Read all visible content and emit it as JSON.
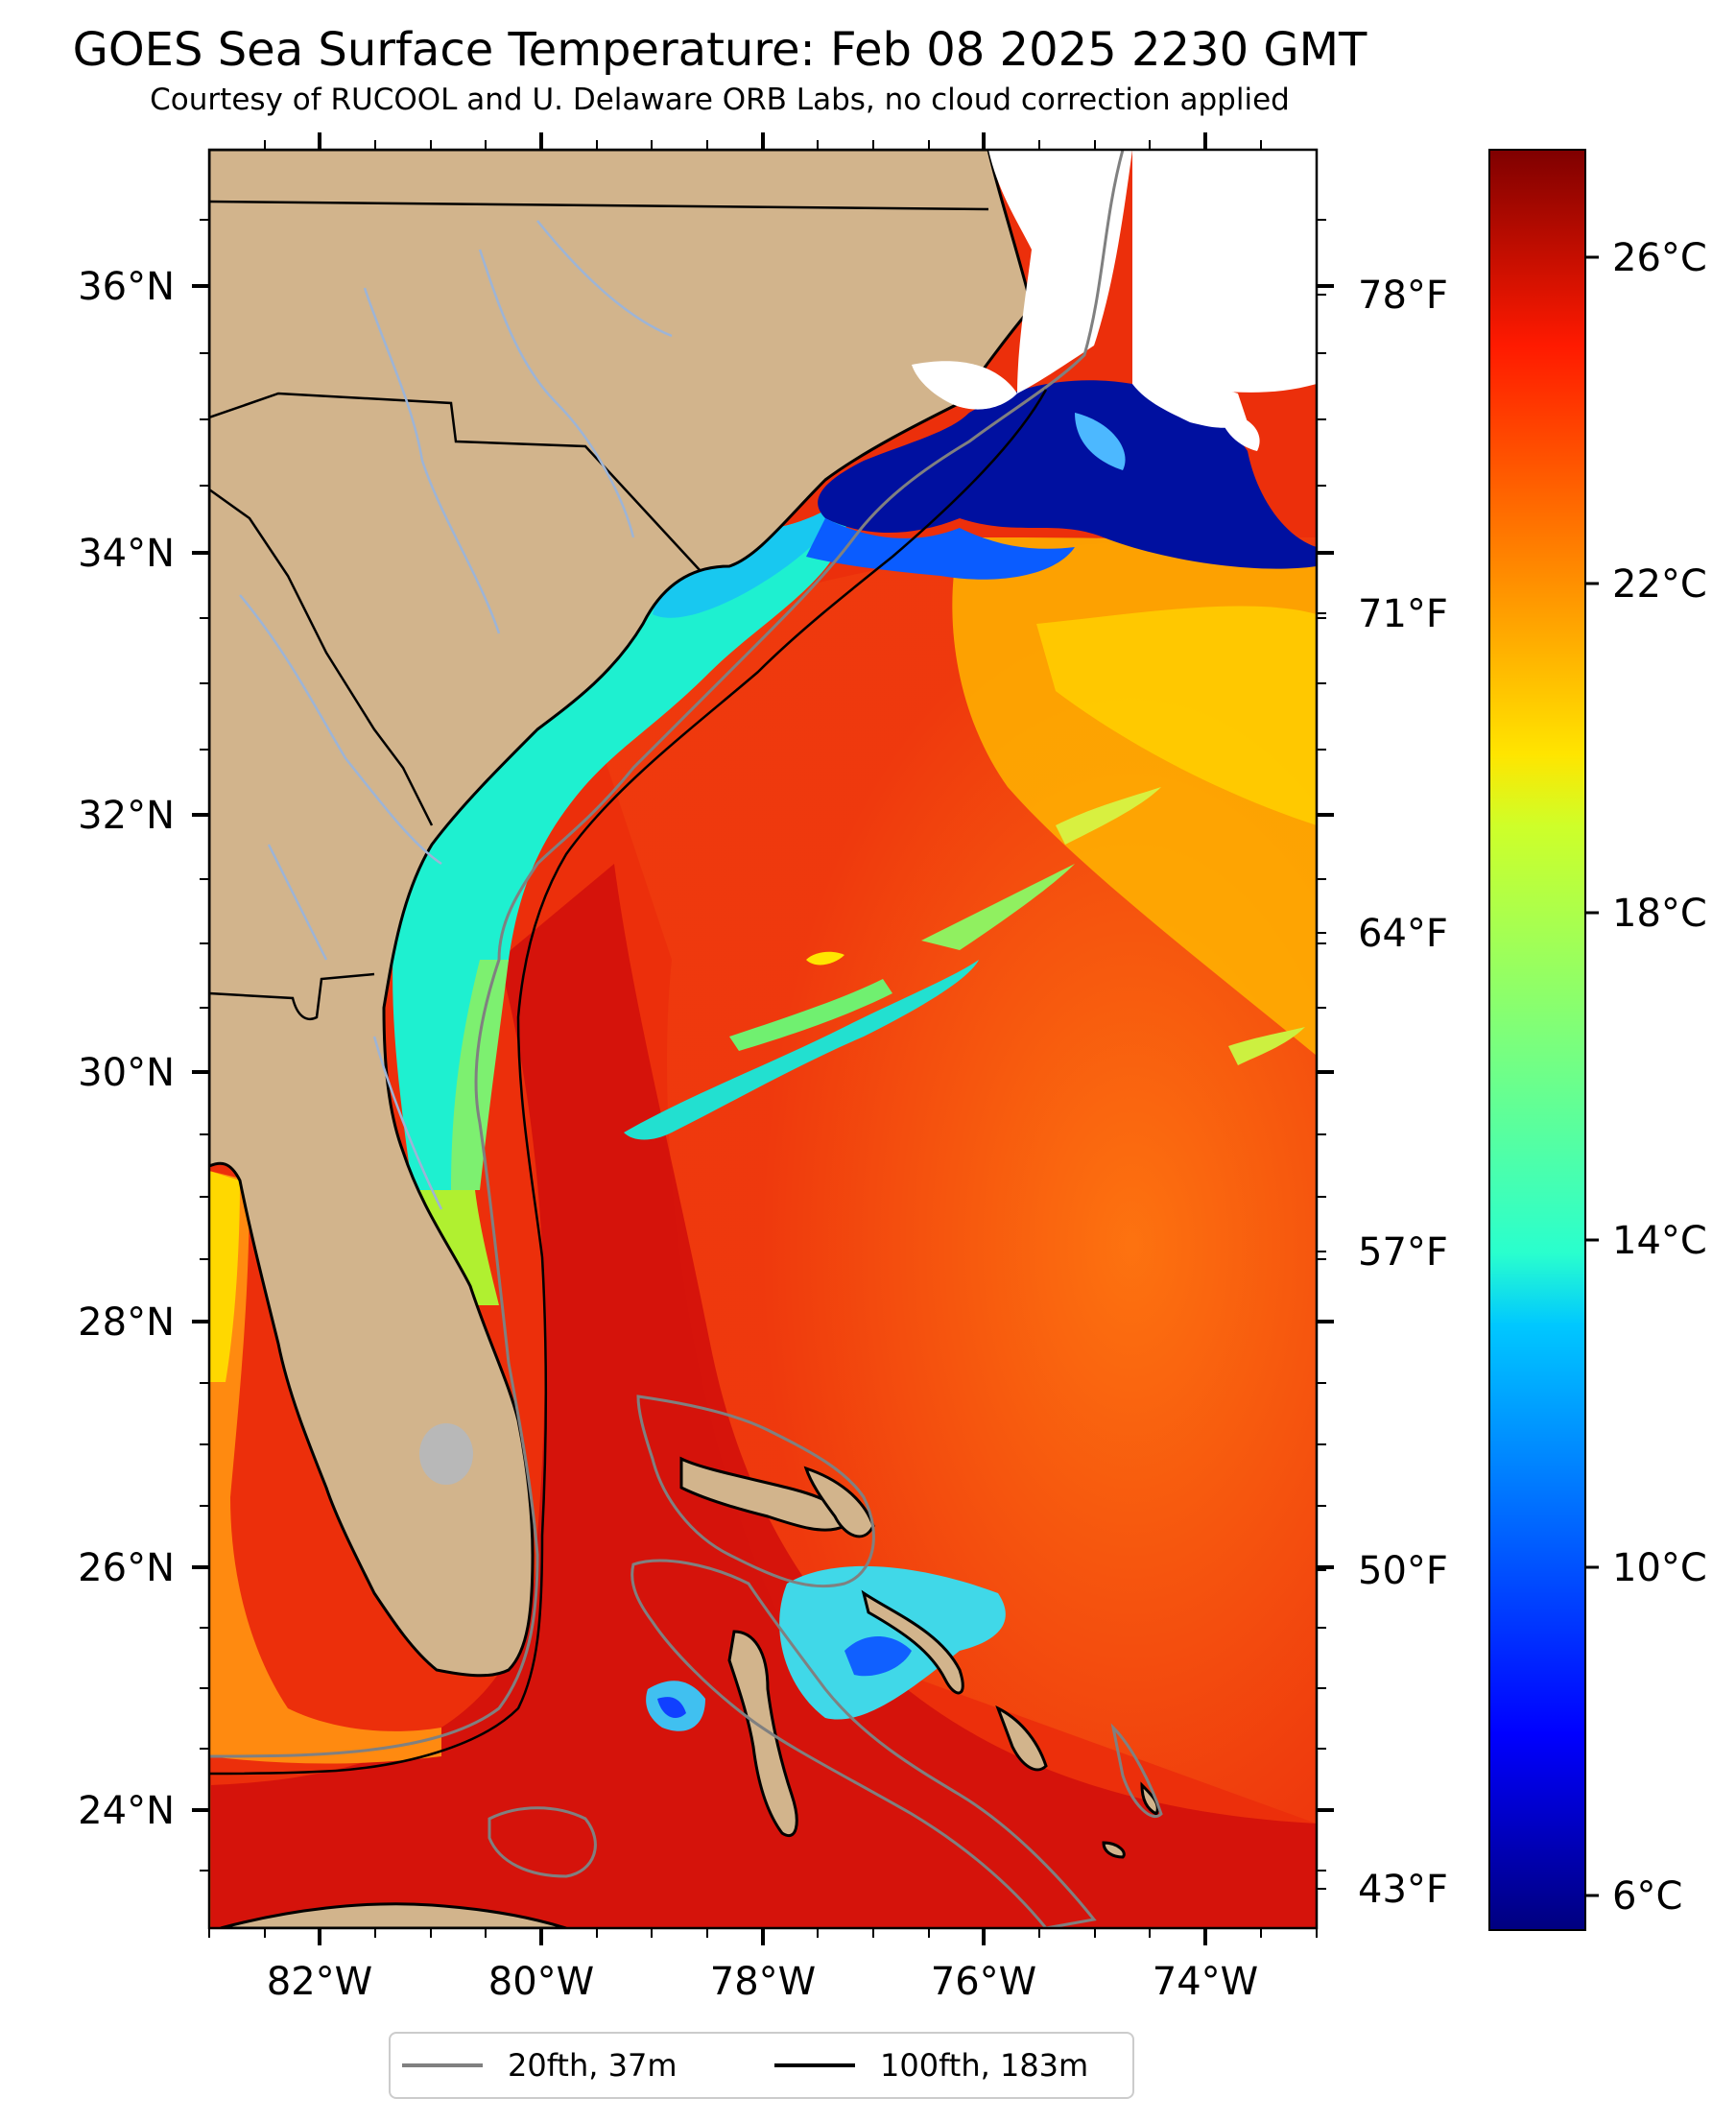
{
  "title": "GOES Sea Surface Temperature: Feb 08 2025 2230 GMT",
  "subtitle": "Courtesy of RUCOOL and U. Delaware ORB Labs, no cloud correction applied",
  "map": {
    "lat_labels": [
      "36°N",
      "34°N",
      "32°N",
      "30°N",
      "28°N",
      "26°N",
      "24°N"
    ],
    "lon_labels": [
      "82°W",
      "80°W",
      "78°W",
      "76°W",
      "74°W"
    ],
    "f_labels": [
      "78°F",
      "71°F",
      "64°F",
      "57°F",
      "50°F",
      "43°F"
    ],
    "colors": {
      "land": "#d2b48c",
      "ocean_warm": "#e8140b",
      "river": "#9db4d6",
      "coast": "#000000"
    }
  },
  "colorbar": {
    "labels": [
      "26°C",
      "22°C",
      "18°C",
      "14°C",
      "10°C",
      "6°C"
    ],
    "colormap": "jet"
  },
  "legend": {
    "items": [
      {
        "label": "20fth, 37m",
        "color": "#808080"
      },
      {
        "label": "100fth, 183m",
        "color": "#000000"
      }
    ]
  }
}
